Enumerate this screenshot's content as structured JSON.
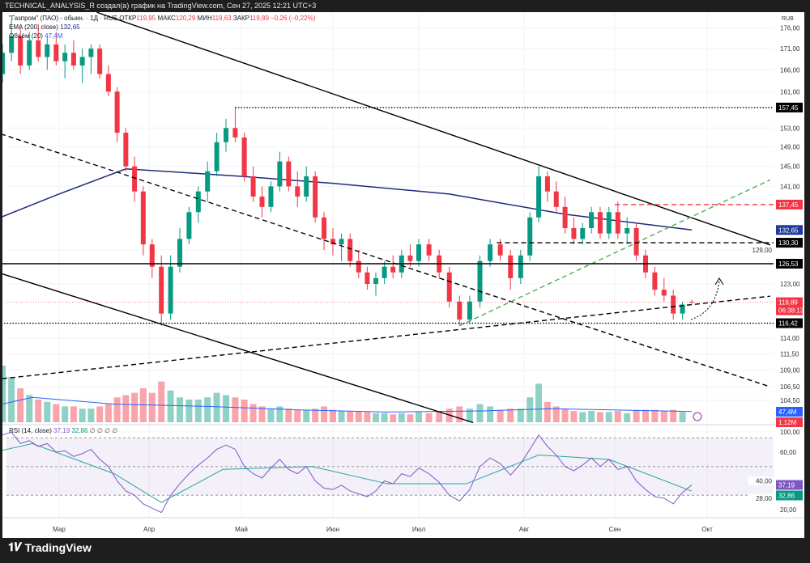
{
  "header": {
    "attribution": "TECHNICAL_ANALYSIS_R создал(а) график на TradingView.com, Сен 27, 2025 12:21 UTC+3"
  },
  "legend": {
    "symbol": "\"Газпром\" (ПАО) - обыкн. · 1Д · RUS",
    "open_label": "ОТКР",
    "open": "119,95",
    "high_label": "МАКС",
    "high": "120,29",
    "low_label": "МИН",
    "low": "119,63",
    "close_label": "ЗАКР",
    "close": "119,89",
    "change": "−0,26 (−0,22%)",
    "ema_label": "EMA (200, close)",
    "ema_value": "132,65",
    "volume_label": "Объём (20)",
    "volume_value": "47,4M",
    "rsi_label": "RSI (14, close)",
    "rsi_value": "37,19",
    "rsi_ma_value": "32,86",
    "rsi_extra": "∅ ∅ ∅ ∅"
  },
  "footer": {
    "brand": "TradingView"
  },
  "colors": {
    "up": "#089981",
    "down": "#f23645",
    "ema": "#1f2a7a",
    "rsi": "#7e57c2",
    "rsi_ma": "#26a69a",
    "trend_green": "#4caf50"
  },
  "chart_data": {
    "type": "candlestick",
    "currency": "RUB",
    "year": 2025,
    "y_scale": "log",
    "price_ticks": [
      "176,00",
      "171,00",
      "166,00",
      "161,00",
      "153,00",
      "149,00",
      "145,00",
      "141,00",
      "129,00",
      "123,00",
      "114,00",
      "111,50",
      "109,00",
      "106,50",
      "104,50",
      "100,00"
    ],
    "price_tick_values": [
      176,
      171,
      166,
      161,
      153,
      149,
      145,
      141,
      129,
      123,
      114,
      111.5,
      109,
      106.5,
      104.5,
      100
    ],
    "price_badges": [
      {
        "label": "157,45",
        "value": 157.45,
        "color": "#000000"
      },
      {
        "label": "137,45",
        "value": 137.45,
        "color": "#f23645"
      },
      {
        "label": "132,65",
        "value": 132.65,
        "color": "#1e3a9e"
      },
      {
        "label": "130,30",
        "value": 130.3,
        "color": "#000000"
      },
      {
        "label": "126,53",
        "value": 126.53,
        "color": "#000000"
      },
      {
        "label": "119,89",
        "sub": "06:38:13",
        "value": 119.89,
        "color": "#f23645"
      },
      {
        "label": "116,42",
        "value": 116.42,
        "color": "#000000"
      }
    ],
    "volume_badges": [
      {
        "label": "47,4M",
        "color": "#2962ff"
      },
      {
        "label": "1,12M",
        "color": "#f23645"
      }
    ],
    "rsi_ticks": [
      "60,00",
      "40,00",
      "28,00",
      "20,00"
    ],
    "rsi_tick_values": [
      60,
      40,
      28,
      20
    ],
    "rsi_badges": [
      {
        "label": "37,19",
        "value": 37.19,
        "color": "#7e57c2"
      },
      {
        "label": "32,86",
        "value": 32.86,
        "color": "#089981"
      }
    ],
    "rsi_band": [
      70,
      30
    ],
    "months": [
      {
        "label": "Мар",
        "date": "03-01"
      },
      {
        "label": "Апр",
        "date": "04-01"
      },
      {
        "label": "Май",
        "date": "05-01"
      },
      {
        "label": "Июн",
        "date": "06-01"
      },
      {
        "label": "Июл",
        "date": "07-01"
      },
      {
        "label": "Авг",
        "date": "08-01"
      },
      {
        "label": "Сен",
        "date": "09-01"
      },
      {
        "label": "Окт",
        "date": "10-01"
      }
    ],
    "candle_fields": [
      "date",
      "open",
      "high",
      "low",
      "close",
      "volume_m",
      "rsi"
    ],
    "candles": [
      [
        "02-03",
        142,
        143,
        141,
        142.5,
        60,
        52
      ],
      [
        "02-06",
        142.5,
        150,
        142,
        149,
        180,
        60
      ],
      [
        "02-08",
        149,
        166,
        148,
        165,
        400,
        70
      ],
      [
        "02-10",
        165,
        172,
        163,
        170,
        250,
        72
      ],
      [
        "02-13",
        170,
        178,
        168,
        174,
        200,
        74
      ],
      [
        "02-16",
        174,
        176,
        165,
        167,
        150,
        66
      ],
      [
        "02-19",
        167,
        175,
        166,
        173,
        120,
        68
      ],
      [
        "02-22",
        173,
        177,
        168,
        169,
        100,
        64
      ],
      [
        "02-25",
        169,
        174,
        166,
        172,
        90,
        66
      ],
      [
        "02-28",
        172,
        175,
        167,
        168,
        80,
        60
      ],
      [
        "03-03",
        168,
        172,
        164,
        170,
        70,
        61
      ],
      [
        "03-06",
        170,
        173,
        166,
        167,
        70,
        57
      ],
      [
        "03-09",
        167,
        171,
        163,
        169,
        60,
        59
      ],
      [
        "03-12",
        169,
        172,
        165,
        171,
        60,
        62
      ],
      [
        "03-15",
        171,
        172,
        164,
        165,
        70,
        55
      ],
      [
        "03-18",
        165,
        167,
        160,
        161,
        80,
        50
      ],
      [
        "03-21",
        161,
        162,
        150,
        152,
        110,
        40
      ],
      [
        "03-24",
        152,
        153,
        144,
        145,
        120,
        33
      ],
      [
        "03-27",
        145,
        147,
        138,
        140,
        130,
        30
      ],
      [
        "03-30",
        140,
        141,
        128,
        130,
        150,
        24
      ],
      [
        "04-02",
        130,
        131,
        124,
        126,
        130,
        21
      ],
      [
        "04-05",
        126,
        128,
        116,
        118,
        180,
        18
      ],
      [
        "04-08",
        118,
        128,
        117,
        126,
        140,
        30
      ],
      [
        "04-11",
        126,
        133,
        125,
        131,
        110,
        38
      ],
      [
        "04-14",
        131,
        137,
        130,
        136,
        100,
        45
      ],
      [
        "04-17",
        136,
        141,
        134,
        140,
        100,
        51
      ],
      [
        "04-20",
        140,
        146,
        138,
        144,
        110,
        56
      ],
      [
        "04-23",
        144,
        152,
        143,
        150,
        130,
        62
      ],
      [
        "04-26",
        150,
        155,
        148,
        153,
        120,
        65
      ],
      [
        "04-29",
        153,
        157.45,
        150,
        151,
        110,
        62
      ],
      [
        "05-02",
        151,
        152,
        142,
        143,
        100,
        50
      ],
      [
        "05-05",
        143,
        145,
        138,
        139,
        80,
        45
      ],
      [
        "05-08",
        139,
        141,
        135,
        137,
        70,
        42
      ],
      [
        "05-11",
        137,
        142,
        136,
        141,
        60,
        49
      ],
      [
        "05-14",
        141,
        148,
        140,
        146,
        70,
        55
      ],
      [
        "05-17",
        146,
        147,
        140,
        141,
        60,
        48
      ],
      [
        "05-20",
        141,
        144,
        137,
        139,
        55,
        45
      ],
      [
        "05-23",
        139,
        145,
        138,
        143,
        55,
        50
      ],
      [
        "05-26",
        143,
        144,
        134,
        135,
        60,
        40
      ],
      [
        "05-29",
        135,
        136,
        129,
        131,
        70,
        35
      ],
      [
        "06-01",
        131,
        133,
        128,
        130,
        55,
        34
      ],
      [
        "06-04",
        130,
        132,
        127,
        131,
        50,
        37
      ],
      [
        "06-07",
        131,
        132,
        126,
        127,
        50,
        33
      ],
      [
        "06-10",
        127,
        129,
        124,
        125,
        50,
        31
      ],
      [
        "06-13",
        125,
        126,
        122,
        123,
        45,
        29
      ],
      [
        "06-16",
        123,
        125,
        121,
        124,
        40,
        33
      ],
      [
        "06-19",
        124,
        127,
        123,
        126,
        40,
        40
      ],
      [
        "06-22",
        126,
        128,
        124,
        125,
        35,
        38
      ],
      [
        "06-25",
        125,
        129,
        124,
        128,
        40,
        45
      ],
      [
        "06-28",
        128,
        130,
        126,
        127,
        35,
        43
      ],
      [
        "07-01",
        127,
        131,
        126,
        130,
        45,
        49
      ],
      [
        "07-04",
        130,
        131,
        127,
        128,
        40,
        45
      ],
      [
        "07-07",
        128,
        129,
        124,
        125,
        45,
        39
      ],
      [
        "07-10",
        125,
        126,
        119,
        120,
        60,
        30
      ],
      [
        "07-13",
        120,
        121,
        116,
        117,
        70,
        26
      ],
      [
        "07-16",
        117,
        121,
        116.4,
        120,
        60,
        34
      ],
      [
        "07-19",
        120,
        128,
        119,
        127,
        80,
        50
      ],
      [
        "07-22",
        127,
        131,
        126,
        130,
        70,
        56
      ],
      [
        "07-25",
        130,
        131,
        127,
        128,
        55,
        52
      ],
      [
        "07-28",
        128,
        129,
        122,
        124,
        60,
        44
      ],
      [
        "07-31",
        124,
        129,
        123,
        128,
        60,
        52
      ],
      [
        "08-03",
        128,
        136,
        127,
        135,
        110,
        62
      ],
      [
        "08-06",
        135,
        145,
        134,
        143,
        170,
        72
      ],
      [
        "08-09",
        143,
        144,
        138,
        140,
        90,
        64
      ],
      [
        "08-12",
        140,
        142,
        136,
        137,
        70,
        58
      ],
      [
        "08-15",
        137,
        139,
        132,
        133,
        60,
        50
      ],
      [
        "08-18",
        133,
        135,
        130,
        131,
        50,
        47
      ],
      [
        "08-21",
        131,
        134,
        130,
        133,
        45,
        51
      ],
      [
        "08-24",
        133,
        137,
        132,
        136,
        50,
        56
      ],
      [
        "08-27",
        136,
        137,
        131,
        132,
        45,
        50
      ],
      [
        "08-30",
        132,
        137,
        131,
        136,
        45,
        55
      ],
      [
        "09-02",
        136,
        138,
        131,
        132,
        50,
        48
      ],
      [
        "09-05",
        132,
        135,
        130,
        133,
        40,
        50
      ],
      [
        "09-08",
        133,
        134,
        127,
        128,
        55,
        40
      ],
      [
        "09-11",
        128,
        129,
        124,
        125,
        55,
        34
      ],
      [
        "09-14",
        125,
        126,
        121,
        122,
        55,
        29
      ],
      [
        "09-17",
        122,
        124,
        120,
        121,
        50,
        28
      ],
      [
        "09-20",
        121,
        122,
        117,
        118,
        55,
        24
      ],
      [
        "09-23",
        118,
        120,
        117,
        119.5,
        45,
        32
      ],
      [
        "09-26",
        119.95,
        120.29,
        119.63,
        119.89,
        1.12,
        37.19
      ]
    ],
    "ema200": [
      [
        "02-03",
        133.6
      ],
      [
        "03-01",
        139.5
      ],
      [
        "03-24",
        144.5
      ],
      [
        "05-01",
        143
      ],
      [
        "06-01",
        141.6
      ],
      [
        "07-10",
        139.5
      ],
      [
        "08-15",
        135.6
      ],
      [
        "09-26",
        132.65
      ]
    ],
    "volume_ma": [
      [
        "02-03",
        60
      ],
      [
        "02-20",
        110
      ],
      [
        "03-20",
        80
      ],
      [
        "04-20",
        70
      ],
      [
        "05-20",
        55
      ],
      [
        "06-20",
        45
      ],
      [
        "07-20",
        50
      ],
      [
        "08-10",
        60
      ],
      [
        "09-26",
        47.4
      ]
    ],
    "rsi_ma": [
      [
        "02-03",
        58
      ],
      [
        "02-20",
        66
      ],
      [
        "03-20",
        45
      ],
      [
        "04-05",
        25
      ],
      [
        "04-25",
        48
      ],
      [
        "05-25",
        50
      ],
      [
        "06-20",
        38
      ],
      [
        "07-15",
        38
      ],
      [
        "08-06",
        58
      ],
      [
        "08-30",
        55
      ],
      [
        "09-26",
        32.86
      ]
    ],
    "trendlines": [
      {
        "name": "upper-falling-trendline",
        "style": "solid",
        "color": "#000",
        "from": [
          "03-14",
          179.9
        ],
        "to": [
          "10-22",
          129.9
        ]
      },
      {
        "name": "lower-falling-trendline",
        "style": "solid",
        "color": "#000",
        "from": [
          "01-30",
          126.53
        ],
        "to": [
          "07-17",
          101.3
        ]
      },
      {
        "name": "mid-falling-dashed-trendline",
        "style": "dashed",
        "color": "#000",
        "from": [
          "01-30",
          153.9
        ],
        "to": [
          "10-22",
          106.5
        ]
      },
      {
        "name": "rising-dashed-trendline",
        "style": "dashed",
        "color": "#000",
        "from": [
          "01-30",
          107.2
        ],
        "to": [
          "10-22",
          120.9
        ]
      },
      {
        "name": "green-rising-dashed-trendline",
        "style": "dashed",
        "color": "#4caf50",
        "from": [
          "07-13",
          116.0
        ],
        "to": [
          "10-22",
          142.3
        ]
      },
      {
        "name": "support-126-line",
        "style": "solid",
        "color": "#000",
        "from": [
          "01-30",
          126.53
        ],
        "to": [
          "10-26",
          126.53
        ]
      },
      {
        "name": "resistance-157-line",
        "style": "dotted",
        "color": "#000",
        "from": [
          "04-29",
          157.45
        ],
        "to": [
          "10-26",
          157.45
        ]
      },
      {
        "name": "support-116-line",
        "style": "dotted",
        "color": "#000",
        "from": [
          "01-30",
          116.42
        ],
        "to": [
          "10-26",
          116.42
        ]
      },
      {
        "name": "level-130-line",
        "style": "dashed",
        "color": "#000",
        "from": [
          "07-24",
          130.3
        ],
        "to": [
          "10-26",
          130.3
        ]
      },
      {
        "name": "level-137-line",
        "style": "dashed",
        "color": "#f23645",
        "from": [
          "09-01",
          137.45
        ],
        "to": [
          "10-26",
          137.45
        ]
      }
    ]
  }
}
